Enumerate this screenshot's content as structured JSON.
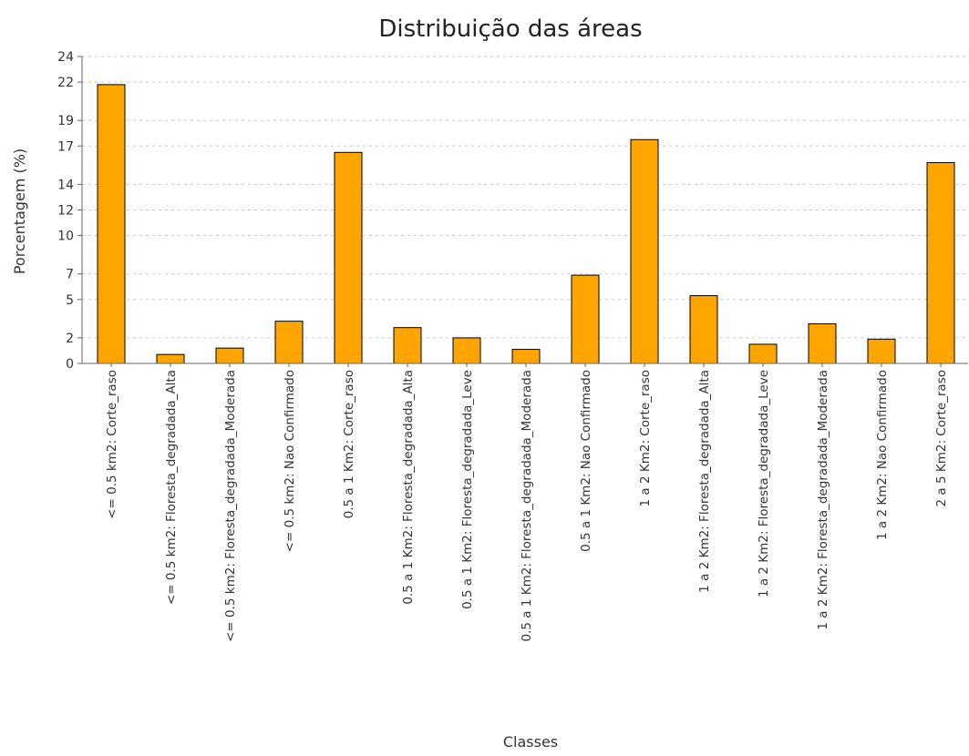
{
  "chart_data": {
    "type": "bar",
    "title": "Distribuição das áreas",
    "xlabel": "Classes",
    "ylabel": "Porcentagem (%)",
    "ylim": [
      0,
      24
    ],
    "y_ticks": [
      0,
      2,
      5,
      7,
      10,
      12,
      14,
      17,
      19,
      22,
      24
    ],
    "grid": true,
    "bar_color": "#FFA500",
    "categories": [
      "<= 0.5 km2: Corte_raso",
      "<= 0.5 km2: Floresta_degradada_Alta",
      "<= 0.5 km2: Floresta_degradada_Moderada",
      "<= 0.5 km2: Nao Confirmado",
      "0.5 a 1 Km2: Corte_raso",
      "0.5 a 1 Km2: Floresta_degradada_Alta",
      "0.5 a 1 Km2: Floresta_degradada_Leve",
      "0.5 a 1 Km2: Floresta_degradada_Moderada",
      "0.5 a 1 Km2: Nao Confirmado",
      "1 a 2 Km2: Corte_raso",
      "1 a 2 Km2: Floresta_degradada_Alta",
      "1 a 2 Km2: Floresta_degradada_Leve",
      "1 a 2 Km2: Floresta_degradada_Moderada",
      "1 a 2 Km2: Nao Confirmado",
      "2 a 5 Km2: Corte_raso"
    ],
    "values": [
      21.8,
      0.7,
      1.2,
      3.3,
      16.5,
      2.8,
      2.0,
      1.1,
      6.9,
      17.5,
      5.3,
      1.5,
      3.1,
      1.9,
      15.7
    ]
  }
}
